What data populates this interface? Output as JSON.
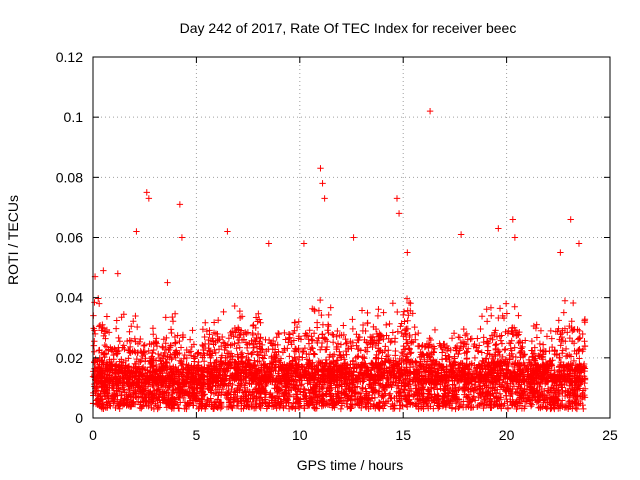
{
  "chart_data": {
    "type": "scatter",
    "title": "Day 242 of 2017, Rate Of TEC Index for receiver beec",
    "xlabel": "GPS time / hours",
    "ylabel": "ROTI / TECUs",
    "xlim": [
      0,
      25
    ],
    "ylim": [
      0,
      0.12
    ],
    "xticks": [
      0,
      5,
      10,
      15,
      20,
      25
    ],
    "xtick_labels": [
      "0",
      "5",
      "10",
      "15",
      "20",
      "25"
    ],
    "yticks": [
      0,
      0.02,
      0.04,
      0.06,
      0.08,
      0.1,
      0.12
    ],
    "ytick_labels": [
      "0",
      "0.02",
      "0.04",
      "0.06",
      "0.08",
      "0.1",
      "0.12"
    ],
    "grid": true,
    "marker": "+",
    "color": "#ff0000",
    "series": [
      {
        "name": "ROTI",
        "points_sample": [
          [
            0.1,
            0.047
          ],
          [
            0.3,
            0.038
          ],
          [
            0.5,
            0.049
          ],
          [
            1.2,
            0.048
          ],
          [
            2.1,
            0.062
          ],
          [
            2.6,
            0.075
          ],
          [
            2.7,
            0.073
          ],
          [
            3.6,
            0.045
          ],
          [
            4.2,
            0.071
          ],
          [
            4.3,
            0.06
          ],
          [
            6.5,
            0.062
          ],
          [
            8.5,
            0.058
          ],
          [
            10.2,
            0.058
          ],
          [
            11.0,
            0.083
          ],
          [
            11.1,
            0.078
          ],
          [
            11.2,
            0.073
          ],
          [
            12.6,
            0.06
          ],
          [
            14.7,
            0.073
          ],
          [
            14.8,
            0.068
          ],
          [
            15.2,
            0.055
          ],
          [
            16.3,
            0.102
          ],
          [
            17.8,
            0.061
          ],
          [
            19.6,
            0.063
          ],
          [
            20.3,
            0.066
          ],
          [
            20.4,
            0.06
          ],
          [
            22.6,
            0.055
          ],
          [
            23.1,
            0.066
          ],
          [
            23.5,
            0.058
          ]
        ],
        "envelope": {
          "x": [
            0,
            1,
            2,
            3,
            4,
            5,
            6,
            7,
            8,
            9,
            10,
            11,
            12,
            13,
            14,
            15,
            16,
            17,
            18,
            19,
            20,
            21,
            22,
            23,
            23.8
          ],
          "baseline": [
            0.012,
            0.012,
            0.011,
            0.012,
            0.011,
            0.011,
            0.012,
            0.013,
            0.012,
            0.012,
            0.012,
            0.013,
            0.012,
            0.012,
            0.013,
            0.014,
            0.012,
            0.012,
            0.012,
            0.012,
            0.013,
            0.012,
            0.012,
            0.012,
            0.012
          ],
          "typical_max": [
            0.044,
            0.034,
            0.035,
            0.032,
            0.036,
            0.03,
            0.035,
            0.038,
            0.035,
            0.03,
            0.034,
            0.042,
            0.035,
            0.036,
            0.038,
            0.042,
            0.032,
            0.03,
            0.035,
            0.036,
            0.04,
            0.033,
            0.035,
            0.04,
            0.036
          ]
        }
      }
    ]
  }
}
